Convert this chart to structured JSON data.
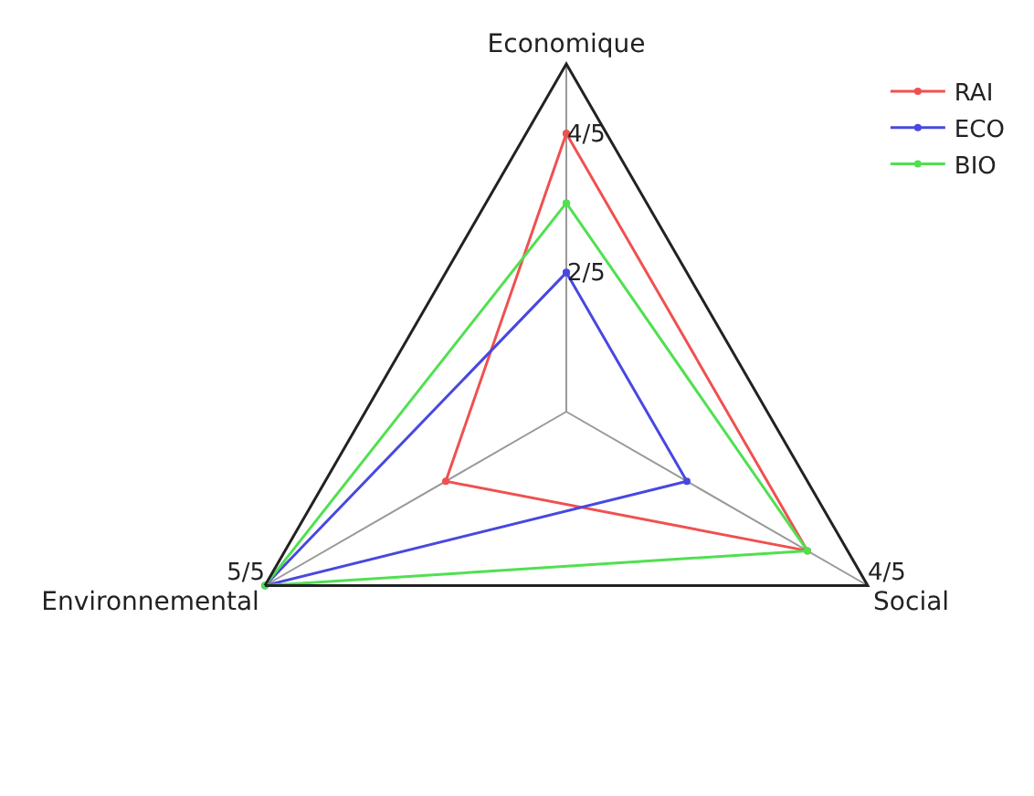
{
  "chart_data": {
    "type": "radar",
    "categories": [
      "Economique",
      "Social",
      "Environnemental"
    ],
    "ylim": [
      0,
      1
    ],
    "yticks": [
      {
        "value": 0.4,
        "label": "2/5"
      },
      {
        "value": 0.8,
        "label": "4/5"
      }
    ],
    "legend": "top right",
    "marker": "circle",
    "line_style": "solid",
    "series": [
      {
        "name": "RAI",
        "color": "#f05050",
        "values": [
          0.8,
          0.8,
          0.4
        ]
      },
      {
        "name": "ECO",
        "color": "#4848e0",
        "values": [
          0.4,
          0.4,
          1.0
        ]
      },
      {
        "name": "BIO",
        "color": "#50e050",
        "values": [
          0.6,
          0.8,
          1.0
        ]
      }
    ],
    "annotations": [
      {
        "text": "5/5",
        "x": "Environnemental"
      },
      {
        "text": "4/5",
        "x": "Social"
      }
    ]
  }
}
